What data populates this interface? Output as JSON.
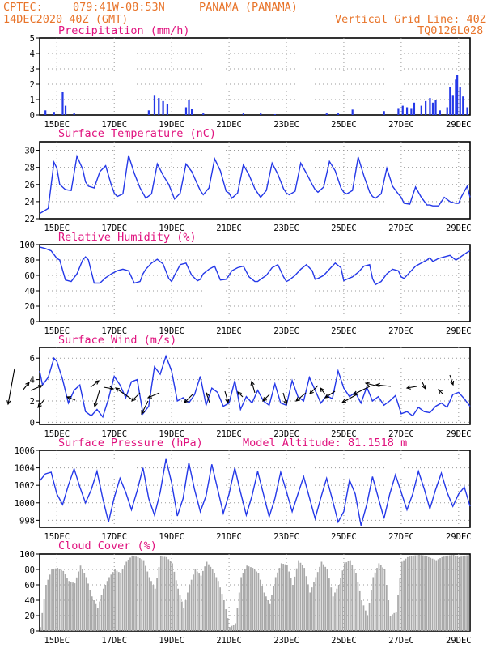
{
  "header": {
    "source": "CPTEC:",
    "location": "079:41W-08:53N",
    "place": "PANAMA (PANAMA)",
    "date": "14DEC2020 40Z (GMT)",
    "grid_note": "Vertical Grid Line: 40Z",
    "code": "TQ0126L028"
  },
  "colors": {
    "header": "#e8742a",
    "title": "#e0127e",
    "line": "#2438e8",
    "cloud": "#a9a9a9",
    "grid": "#999999"
  },
  "chart_data": [
    {
      "type": "bar",
      "title": "Precipitation (mm/h)",
      "ylim": [
        0,
        5
      ],
      "yticks": [
        "0",
        "1",
        "2",
        "3",
        "4",
        "5"
      ],
      "xticks": [
        "15DEC",
        "17DEC",
        "19DEC",
        "21DEC",
        "23DEC",
        "25DEC",
        "27DEC",
        "29DEC"
      ],
      "x_days": [
        14.4,
        29.4
      ],
      "values": [
        [
          14.6,
          0.3
        ],
        [
          14.9,
          0.2
        ],
        [
          15.2,
          1.5
        ],
        [
          15.3,
          0.6
        ],
        [
          15.6,
          0.15
        ],
        [
          18.2,
          0.3
        ],
        [
          18.4,
          1.3
        ],
        [
          18.55,
          1.1
        ],
        [
          18.7,
          0.9
        ],
        [
          18.85,
          0.7
        ],
        [
          19.5,
          0.5
        ],
        [
          19.6,
          1.0
        ],
        [
          19.7,
          0.4
        ],
        [
          20.1,
          0.1
        ],
        [
          21.5,
          0.1
        ],
        [
          22.1,
          0.1
        ],
        [
          22.6,
          0.05
        ],
        [
          24.4,
          0.1
        ],
        [
          24.8,
          0.1
        ],
        [
          25.3,
          0.35
        ],
        [
          26.4,
          0.25
        ],
        [
          26.9,
          0.45
        ],
        [
          27.05,
          0.6
        ],
        [
          27.2,
          0.5
        ],
        [
          27.35,
          0.45
        ],
        [
          27.45,
          0.8
        ],
        [
          27.7,
          0.6
        ],
        [
          27.85,
          0.9
        ],
        [
          28.0,
          1.1
        ],
        [
          28.1,
          0.8
        ],
        [
          28.2,
          1.0
        ],
        [
          28.35,
          0.3
        ],
        [
          28.6,
          0.5
        ],
        [
          28.7,
          1.8
        ],
        [
          28.8,
          1.3
        ],
        [
          28.9,
          2.3
        ],
        [
          28.95,
          2.6
        ],
        [
          29.05,
          1.8
        ],
        [
          29.15,
          1.2
        ],
        [
          29.3,
          0.5
        ]
      ]
    },
    {
      "type": "line",
      "title": "Surface Temperature (nC)",
      "ylim": [
        22,
        31
      ],
      "yticks": [
        "22",
        "24",
        "26",
        "28",
        "30"
      ],
      "xticks": [
        "15DEC",
        "17DEC",
        "19DEC",
        "21DEC",
        "23DEC",
        "25DEC",
        "27DEC",
        "29DEC"
      ],
      "x_days": [
        14.4,
        29.4
      ],
      "x": [
        14.4,
        14.5,
        14.7,
        14.9,
        15.0,
        15.1,
        15.3,
        15.5,
        15.7,
        15.9,
        16.0,
        16.1,
        16.3,
        16.5,
        16.7,
        16.9,
        17.0,
        17.1,
        17.3,
        17.5,
        17.7,
        17.9,
        18.0,
        18.1,
        18.3,
        18.5,
        18.7,
        18.9,
        19.0,
        19.1,
        19.3,
        19.5,
        19.7,
        19.9,
        20.0,
        20.1,
        20.3,
        20.5,
        20.7,
        20.9,
        21.0,
        21.1,
        21.3,
        21.5,
        21.7,
        21.9,
        22.0,
        22.1,
        22.3,
        22.5,
        22.7,
        22.9,
        23.0,
        23.1,
        23.3,
        23.5,
        23.7,
        23.9,
        24.0,
        24.1,
        24.3,
        24.5,
        24.7,
        24.9,
        25.0,
        25.1,
        25.3,
        25.5,
        25.7,
        25.9,
        26.0,
        26.1,
        26.3,
        26.5,
        26.7,
        26.9,
        27.0,
        27.1,
        27.3,
        27.5,
        27.7,
        27.9,
        28.0,
        28.1,
        28.3,
        28.5,
        28.7,
        28.9,
        29.0,
        29.1,
        29.3,
        29.4
      ],
      "values": [
        22.6,
        22.8,
        23.2,
        28.6,
        27.9,
        26.0,
        25.4,
        25.3,
        29.3,
        27.8,
        26.3,
        25.8,
        25.6,
        27.5,
        28.2,
        25.9,
        25.0,
        24.6,
        24.9,
        29.4,
        27.3,
        25.6,
        25.0,
        24.4,
        24.9,
        28.4,
        27.1,
        26.0,
        25.2,
        24.3,
        25.0,
        28.4,
        27.5,
        26.0,
        25.3,
        24.8,
        25.6,
        29.0,
        27.6,
        25.2,
        25.0,
        24.4,
        25.0,
        28.3,
        27.1,
        25.5,
        25.0,
        24.5,
        25.3,
        28.5,
        27.2,
        25.5,
        25.0,
        24.8,
        25.2,
        28.5,
        27.3,
        26.0,
        25.4,
        25.1,
        25.7,
        28.7,
        27.6,
        25.6,
        25.1,
        24.9,
        25.3,
        29.2,
        27.0,
        25.1,
        24.6,
        24.4,
        24.9,
        27.9,
        25.8,
        24.9,
        24.5,
        23.8,
        23.7,
        25.7,
        24.5,
        23.6,
        23.6,
        23.5,
        23.5,
        24.5,
        24.0,
        23.8,
        23.8,
        24.6,
        25.8,
        24.5
      ]
    },
    {
      "type": "line",
      "title": "Relative Humidity (%)",
      "ylim": [
        0,
        100
      ],
      "yticks": [
        "0",
        "20",
        "40",
        "60",
        "80",
        "100"
      ],
      "xticks": [
        "15DEC",
        "17DEC",
        "19DEC",
        "21DEC",
        "23DEC",
        "25DEC",
        "27DEC",
        "29DEC"
      ],
      "x_days": [
        14.4,
        29.4
      ],
      "x": [
        14.4,
        14.6,
        14.8,
        15.0,
        15.1,
        15.3,
        15.5,
        15.7,
        15.9,
        16.0,
        16.1,
        16.3,
        16.5,
        16.7,
        16.9,
        17.0,
        17.1,
        17.3,
        17.5,
        17.7,
        17.9,
        18.0,
        18.1,
        18.3,
        18.5,
        18.7,
        18.9,
        19.0,
        19.1,
        19.3,
        19.5,
        19.7,
        19.9,
        20.0,
        20.1,
        20.3,
        20.5,
        20.7,
        20.9,
        21.0,
        21.1,
        21.3,
        21.5,
        21.7,
        21.9,
        22.0,
        22.1,
        22.3,
        22.5,
        22.7,
        22.9,
        23.0,
        23.1,
        23.3,
        23.5,
        23.7,
        23.9,
        24.0,
        24.1,
        24.3,
        24.5,
        24.7,
        24.9,
        25.0,
        25.1,
        25.3,
        25.5,
        25.7,
        25.9,
        26.0,
        26.1,
        26.3,
        26.5,
        26.7,
        26.9,
        27.0,
        27.1,
        27.3,
        27.5,
        27.7,
        27.9,
        28.0,
        28.1,
        28.3,
        28.5,
        28.7,
        28.9,
        29.0,
        29.1,
        29.3,
        29.4
      ],
      "values": [
        97,
        95,
        92,
        82,
        80,
        54,
        52,
        62,
        80,
        84,
        80,
        50,
        50,
        57,
        62,
        64,
        66,
        68,
        66,
        50,
        52,
        62,
        68,
        76,
        81,
        75,
        56,
        52,
        60,
        74,
        76,
        60,
        53,
        55,
        62,
        68,
        72,
        54,
        55,
        60,
        66,
        70,
        72,
        58,
        52,
        52,
        55,
        60,
        70,
        74,
        58,
        52,
        54,
        60,
        68,
        74,
        66,
        55,
        56,
        60,
        68,
        76,
        70,
        53,
        55,
        58,
        64,
        72,
        74,
        56,
        48,
        52,
        62,
        68,
        66,
        58,
        56,
        64,
        72,
        76,
        80,
        83,
        78,
        82,
        84,
        86,
        80,
        82,
        85,
        90,
        92
      ]
    },
    {
      "type": "line",
      "title": "Surface Wind (m/s)",
      "ylim": [
        -0.2,
        7
      ],
      "yticks": [
        "0",
        "2",
        "4",
        "6"
      ],
      "xticks": [
        "15DEC",
        "17DEC",
        "19DEC",
        "21DEC",
        "23DEC",
        "25DEC",
        "27DEC",
        "29DEC"
      ],
      "x_days": [
        14.4,
        29.4
      ],
      "x": [
        14.4,
        14.5,
        14.7,
        14.9,
        15.0,
        15.2,
        15.4,
        15.6,
        15.8,
        16.0,
        16.2,
        16.4,
        16.6,
        16.8,
        17.0,
        17.2,
        17.4,
        17.6,
        17.8,
        18.0,
        18.2,
        18.4,
        18.6,
        18.8,
        19.0,
        19.2,
        19.4,
        19.6,
        19.8,
        20.0,
        20.2,
        20.4,
        20.6,
        20.8,
        21.0,
        21.2,
        21.4,
        21.6,
        21.8,
        22.0,
        22.2,
        22.4,
        22.6,
        22.8,
        23.0,
        23.2,
        23.4,
        23.6,
        23.8,
        24.0,
        24.2,
        24.4,
        24.6,
        24.8,
        25.0,
        25.2,
        25.4,
        25.6,
        25.8,
        26.0,
        26.2,
        26.4,
        26.6,
        26.8,
        27.0,
        27.2,
        27.4,
        27.6,
        27.8,
        28.0,
        28.2,
        28.4,
        28.6,
        28.8,
        29.0,
        29.2,
        29.4
      ],
      "values": [
        4.8,
        3.5,
        4.2,
        6.0,
        5.7,
        4.0,
        1.8,
        3.0,
        3.5,
        1.0,
        0.6,
        1.2,
        0.5,
        2.2,
        4.3,
        3.5,
        2.3,
        3.8,
        4.0,
        0.8,
        1.5,
        5.2,
        4.5,
        6.2,
        4.8,
        2.0,
        2.3,
        1.8,
        2.6,
        4.3,
        1.6,
        3.2,
        2.8,
        1.5,
        1.8,
        3.9,
        1.2,
        2.4,
        1.8,
        3.0,
        2.0,
        1.6,
        3.6,
        1.8,
        1.6,
        3.9,
        2.4,
        2.0,
        4.2,
        3.0,
        1.8,
        2.5,
        2.2,
        4.8,
        3.2,
        2.4,
        2.8,
        1.8,
        3.3,
        2.0,
        2.4,
        1.6,
        2.0,
        2.5,
        0.8,
        1.0,
        0.6,
        1.4,
        1.0,
        0.9,
        1.5,
        1.8,
        1.4,
        2.6,
        2.8,
        2.2,
        1.5
      ]
    },
    {
      "type": "line",
      "title": "Surface Pressure (hPa)",
      "subtitle": "Model Altitude: 81.1518 m",
      "ylim": [
        997.2,
        1006
      ],
      "yticks": [
        "998",
        "1000",
        "1002",
        "1004",
        "1006"
      ],
      "xticks": [
        "15DEC",
        "17DEC",
        "19DEC",
        "21DEC",
        "23DEC",
        "25DEC",
        "27DEC",
        "29DEC"
      ],
      "x_days": [
        14.4,
        29.4
      ],
      "x": [
        14.4,
        14.6,
        14.8,
        15.0,
        15.2,
        15.4,
        15.6,
        15.8,
        16.0,
        16.2,
        16.4,
        16.6,
        16.8,
        17.0,
        17.2,
        17.4,
        17.6,
        17.8,
        18.0,
        18.2,
        18.4,
        18.6,
        18.8,
        19.0,
        19.2,
        19.4,
        19.6,
        19.8,
        20.0,
        20.2,
        20.4,
        20.6,
        20.8,
        21.0,
        21.2,
        21.4,
        21.6,
        21.8,
        22.0,
        22.2,
        22.4,
        22.6,
        22.8,
        23.0,
        23.2,
        23.4,
        23.6,
        23.8,
        24.0,
        24.2,
        24.4,
        24.6,
        24.8,
        25.0,
        25.2,
        25.4,
        25.6,
        25.8,
        26.0,
        26.2,
        26.4,
        26.6,
        26.8,
        27.0,
        27.2,
        27.4,
        27.6,
        27.8,
        28.0,
        28.2,
        28.4,
        28.6,
        28.8,
        29.0,
        29.2,
        29.4
      ],
      "values": [
        1002.5,
        1003.3,
        1003.5,
        1001.0,
        999.8,
        1002.0,
        1003.9,
        1001.8,
        1000.0,
        1001.5,
        1003.6,
        1000.5,
        997.8,
        1000.6,
        1002.8,
        1001.2,
        999.2,
        1001.4,
        1004.0,
        1000.5,
        998.6,
        1001.2,
        1005.0,
        1002.3,
        998.5,
        1000.5,
        1004.6,
        1001.5,
        999.0,
        1000.8,
        1004.4,
        1001.6,
        998.8,
        1001.0,
        1004.0,
        1001.2,
        998.6,
        1000.8,
        1003.6,
        1001.0,
        998.4,
        1000.5,
        1003.5,
        1001.3,
        999.0,
        1001.0,
        1003.0,
        1000.6,
        998.2,
        1000.6,
        1002.8,
        1000.4,
        997.8,
        999.0,
        1002.6,
        1001.0,
        997.4,
        999.8,
        1003.0,
        1000.6,
        998.2,
        1001.0,
        1003.2,
        1001.2,
        999.2,
        1001.0,
        1003.6,
        1001.6,
        999.3,
        1001.5,
        1003.4,
        1001.2,
        999.6,
        1001.0,
        1001.8,
        999.6
      ]
    },
    {
      "type": "area",
      "title": "Cloud Cover (%)",
      "ylim": [
        0,
        100
      ],
      "yticks": [
        "0",
        "20",
        "40",
        "60",
        "80",
        "100"
      ],
      "xticks": [
        "15DEC",
        "17DEC",
        "19DEC",
        "21DEC",
        "23DEC",
        "25DEC",
        "27DEC",
        "29DEC"
      ],
      "x_days": [
        14.4,
        29.4
      ],
      "x": [
        14.4,
        14.6,
        14.8,
        15.0,
        15.2,
        15.4,
        15.6,
        15.8,
        16.0,
        16.2,
        16.4,
        16.6,
        16.8,
        17.0,
        17.2,
        17.4,
        17.6,
        17.8,
        18.0,
        18.2,
        18.4,
        18.6,
        18.8,
        19.0,
        19.2,
        19.4,
        19.6,
        19.8,
        20.0,
        20.2,
        20.4,
        20.6,
        20.8,
        21.0,
        21.2,
        21.4,
        21.6,
        21.8,
        22.0,
        22.2,
        22.4,
        22.6,
        22.8,
        23.0,
        23.2,
        23.4,
        23.6,
        23.8,
        24.0,
        24.2,
        24.4,
        24.6,
        24.8,
        25.0,
        25.2,
        25.4,
        25.6,
        25.8,
        26.0,
        26.2,
        26.4,
        26.6,
        26.8,
        27.0,
        27.2,
        27.4,
        27.6,
        27.8,
        28.0,
        28.2,
        28.4,
        28.6,
        28.8,
        29.0,
        29.2,
        29.4
      ],
      "values": [
        5,
        60,
        80,
        82,
        78,
        65,
        62,
        85,
        70,
        45,
        30,
        55,
        70,
        80,
        75,
        90,
        98,
        96,
        92,
        70,
        55,
        97,
        96,
        88,
        55,
        30,
        60,
        80,
        72,
        90,
        80,
        65,
        40,
        5,
        10,
        70,
        85,
        82,
        75,
        50,
        35,
        70,
        88,
        86,
        60,
        92,
        82,
        50,
        70,
        90,
        80,
        45,
        60,
        88,
        92,
        75,
        40,
        20,
        70,
        88,
        80,
        20,
        25,
        90,
        96,
        98,
        99,
        98,
        95,
        92,
        96,
        98,
        99,
        96,
        98,
        99
      ]
    }
  ]
}
